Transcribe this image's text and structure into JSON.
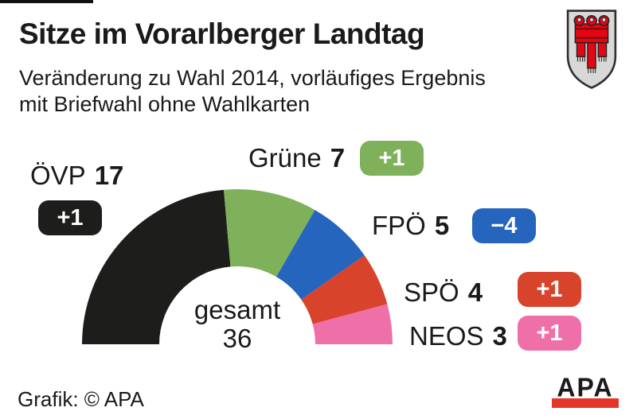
{
  "header": {
    "title": "Sitze im Vorarlberger Landtag",
    "subtitle_line1": "Veränderung zu Wahl 2014, vorläufiges Ergebnis",
    "subtitle_line2": "mit Briefwahl ohne Wahlkarten"
  },
  "chart_data": {
    "type": "pie",
    "variant": "half-donut",
    "title": "Sitze im Vorarlberger Landtag",
    "total_seats": 36,
    "center_label": "gesamt",
    "center_value": "36",
    "series": [
      {
        "name": "ÖVP",
        "seats": 17,
        "change": "+1",
        "color": "#1d1d1b"
      },
      {
        "name": "Grüne",
        "seats": 7,
        "change": "+1",
        "color": "#7fb05a"
      },
      {
        "name": "FPÖ",
        "seats": 5,
        "change": "−4",
        "color": "#2565be"
      },
      {
        "name": "SPÖ",
        "seats": 4,
        "change": "+1",
        "color": "#d8432b"
      },
      {
        "name": "NEOS",
        "seats": 3,
        "change": "+1",
        "color": "#ef6fa9"
      }
    ],
    "layout": {
      "shape": "semicircle",
      "start_deg": 180,
      "end_deg": 0
    }
  },
  "footer": {
    "credit": "Grafik: © APA",
    "logo_text": "APA"
  },
  "icons": {
    "coat_of_arms": "vorarlberg-coat-of-arms"
  },
  "colors": {
    "background": "#ffffff",
    "text": "#1a1a1a",
    "apa_red": "#e5362a",
    "shield_red": "#e30613",
    "shield_silver": "#d8d8d6"
  }
}
